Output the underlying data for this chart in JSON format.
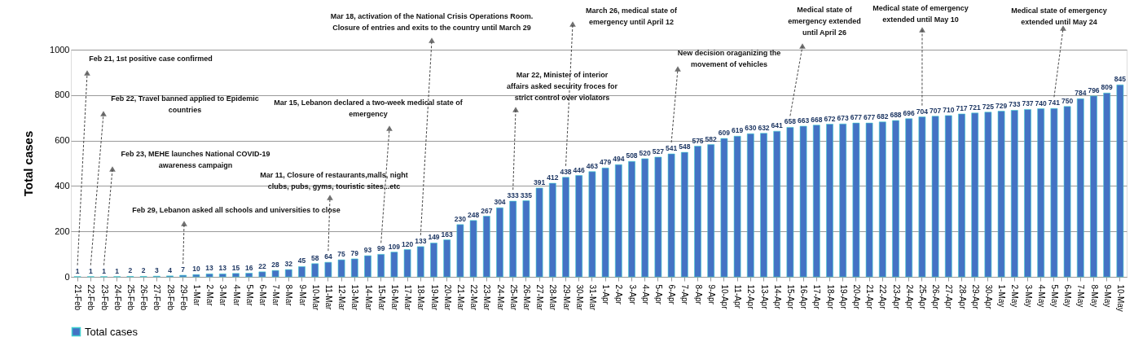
{
  "chart_data": {
    "type": "bar",
    "ylabel": "Total cases",
    "categories": [
      "21-Feb",
      "22-Feb",
      "23-Feb",
      "24-Feb",
      "25-Feb",
      "26-Feb",
      "27-Feb",
      "28-Feb",
      "29-Feb",
      "1-Mar",
      "2-Mar",
      "3-Mar",
      "4-Mar",
      "5-Mar",
      "6-Mar",
      "7-Mar",
      "8-Mar",
      "9-Mar",
      "10-Mar",
      "11-Mar",
      "12-Mar",
      "13-Mar",
      "14-Mar",
      "15-Mar",
      "16-Mar",
      "17-Mar",
      "18-Mar",
      "19-Mar",
      "20-Mar",
      "21-Mar",
      "22-Mar",
      "23-Mar",
      "24-Mar",
      "25-Mar",
      "26-Mar",
      "27-Mar",
      "28-Mar",
      "29-Mar",
      "30-Mar",
      "31-Mar",
      "1-Apr",
      "2-Apr",
      "3-Apr",
      "4-Apr",
      "5-Apr",
      "6-Apr",
      "7-Apr",
      "8-Apr",
      "9-Apr",
      "10-Apr",
      "11-Apr",
      "12-Apr",
      "13-Apr",
      "14-Apr",
      "15-Apr",
      "16-Apr",
      "17-Apr",
      "18-Apr",
      "19-Apr",
      "20-Apr",
      "21-Apr",
      "22-Apr",
      "23-Apr",
      "24-Apr",
      "25-Apr",
      "26-Apr",
      "27-Apr",
      "28-Apr",
      "29-Apr",
      "30-Apr",
      "1-May",
      "2-May",
      "3-May",
      "4-May",
      "5-May",
      "6-May",
      "7-May",
      "8-May",
      "9-May",
      "10-May"
    ],
    "series": [
      {
        "name": "Total cases",
        "color": "#4472c4",
        "values": [
          1,
          1,
          1,
          1,
          2,
          2,
          3,
          4,
          7,
          10,
          13,
          13,
          15,
          16,
          22,
          28,
          32,
          45,
          58,
          64,
          75,
          79,
          93,
          99,
          109,
          120,
          133,
          149,
          163,
          230,
          248,
          267,
          304,
          333,
          335,
          391,
          412,
          438,
          446,
          463,
          479,
          494,
          508,
          520,
          527,
          541,
          548,
          575,
          582,
          609,
          619,
          630,
          632,
          641,
          658,
          663,
          668,
          672,
          673,
          677,
          677,
          682,
          688,
          696,
          704,
          707,
          710,
          717,
          721,
          725,
          729,
          733,
          737,
          740,
          741,
          750,
          784,
          796,
          809,
          845
        ]
      }
    ],
    "ylim": [
      0,
      1000
    ],
    "yticks": [
      0,
      200,
      400,
      600,
      800,
      1000
    ],
    "grid": "y",
    "legend": "bottom",
    "data_labels": true,
    "annotations": [
      "Feb 21, 1st positive case confirmed",
      "Feb 22, Travel banned applied to Epidemic\ncountries",
      "Feb 23, MEHE launches National COVID-19\nawareness campaign",
      "Feb 29, Lebanon asked all schools and universities to close",
      "Mar 11, Closure of restaurants,malls, night\nclubs, pubs, gyms, touristic sites...etc",
      "Mar 15, Lebanon declared a two-week medical state of\nemergency",
      "Mar 18, activation of the National Crisis Operations Room.\nClosure of entries and exits to the country until March 29",
      "Mar 22, Minister of interior\naffairs asked security froces for\nstrict control over violators",
      "March 26, medical state of\nemergency until April 12",
      "New decision oraganizing the\nmovement of vehicles",
      "Medical state of\nemergency extended\nuntil April 26",
      "Medical state of emergency\nextended until May 10",
      "Medical state of emergency\nextended until May 24"
    ]
  }
}
